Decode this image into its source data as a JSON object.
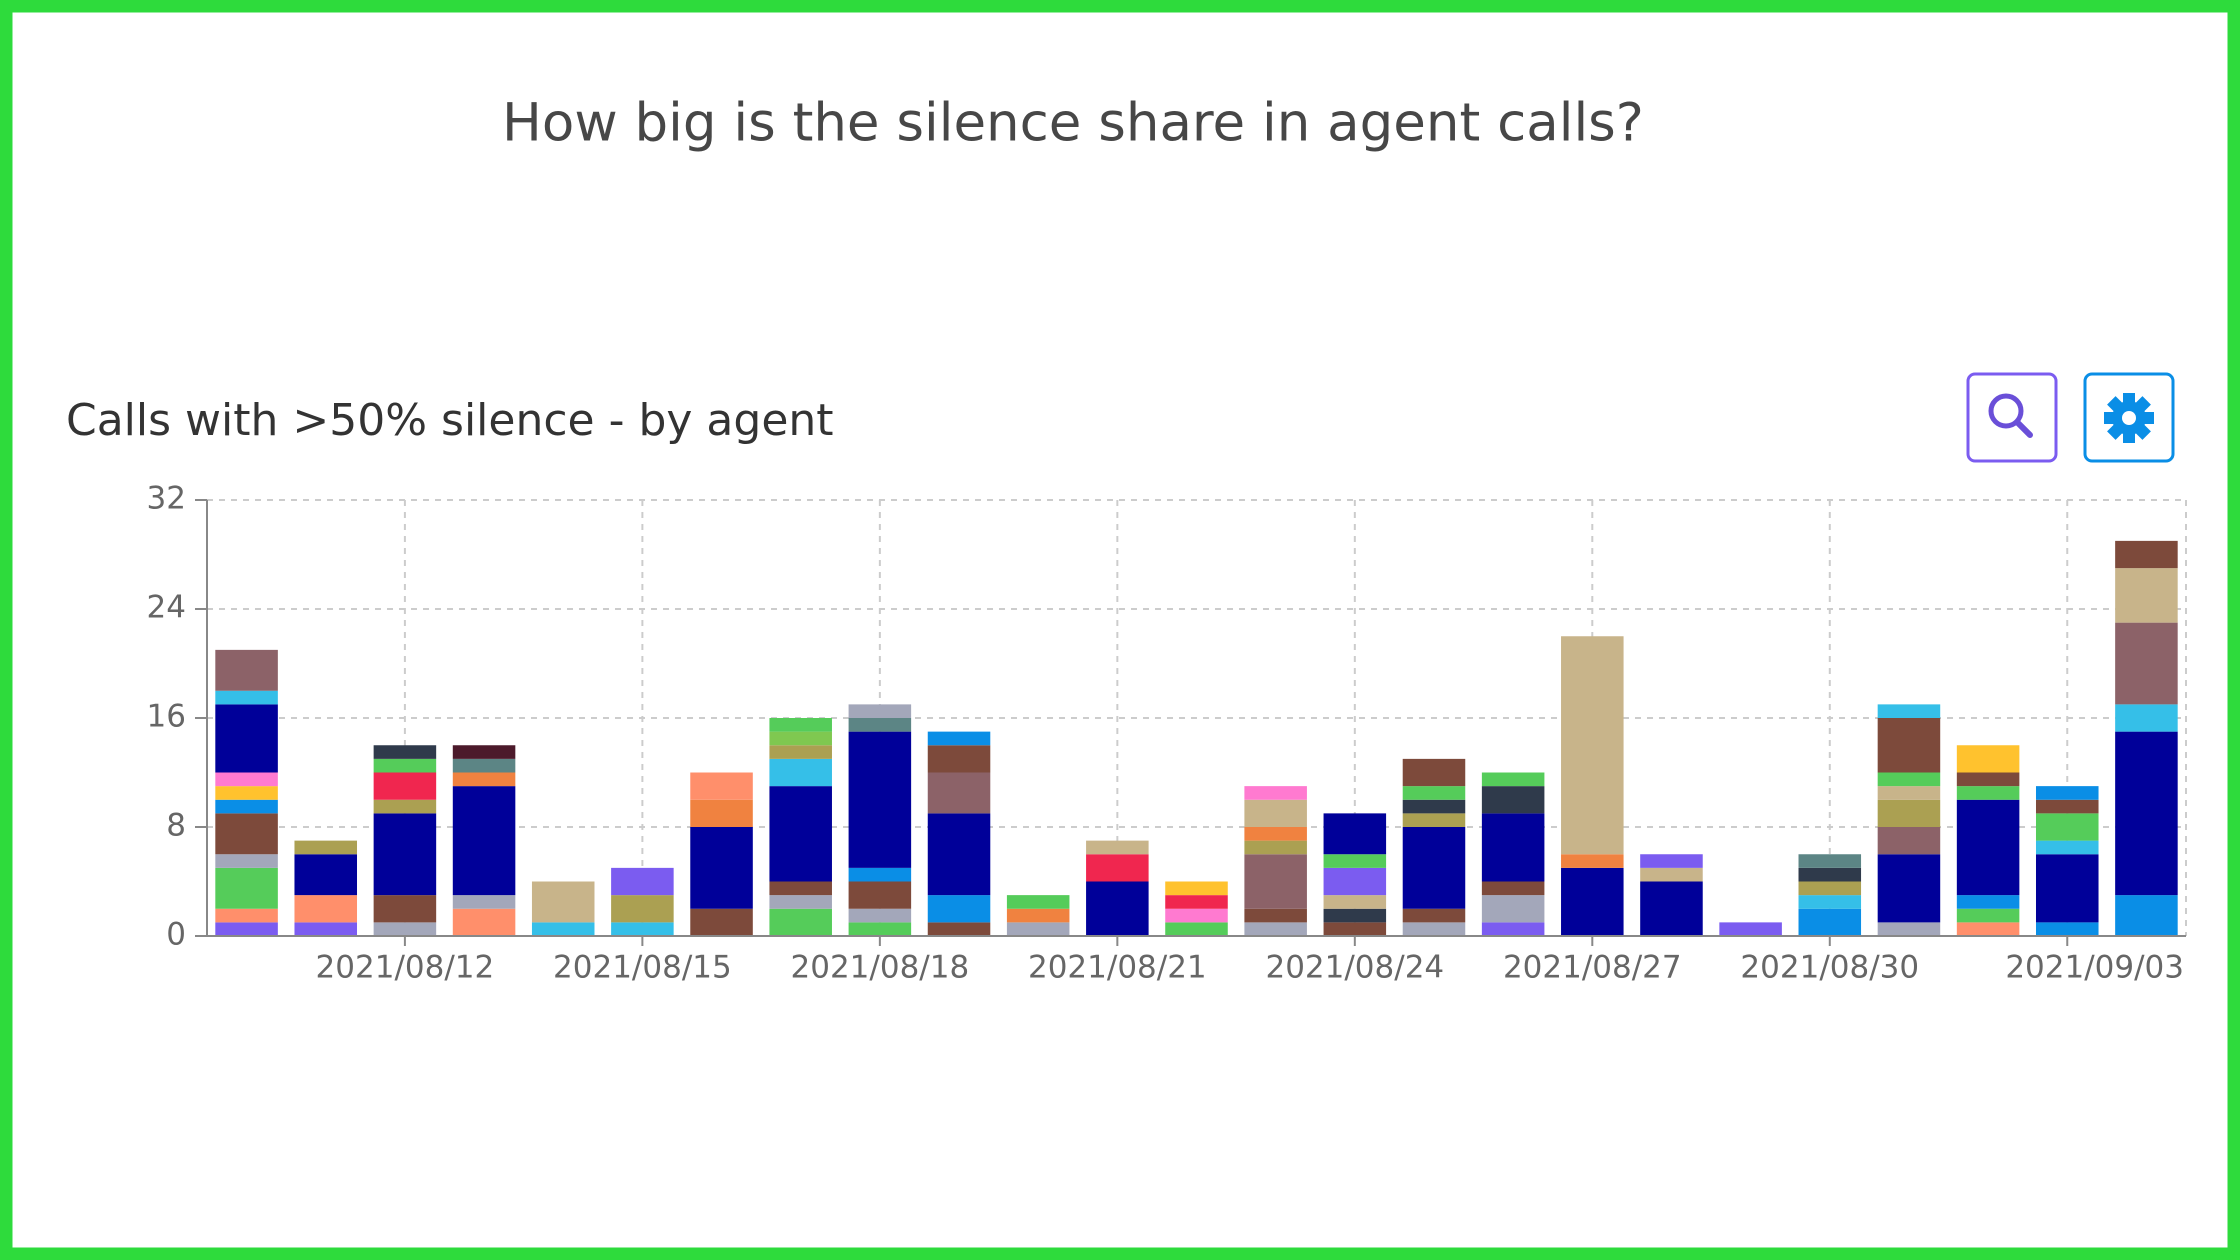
{
  "page_title": "How big is the silence share in agent calls?",
  "chart_data": {
    "type": "stacked-bar",
    "title": "Calls with >50% silence - by agent",
    "categories": [
      null,
      null,
      "2021/08/12",
      null,
      null,
      "2021/08/15",
      null,
      null,
      "2021/08/18",
      null,
      null,
      "2021/08/21",
      null,
      null,
      "2021/08/24",
      null,
      null,
      "2021/08/27",
      null,
      null,
      "2021/08/30",
      null,
      null,
      "2021/09/03",
      null
    ],
    "ylim": [
      0,
      32
    ],
    "yticks": [
      0,
      8,
      16,
      24,
      32
    ],
    "grid": true,
    "bars": [
      [
        {
          "color": "#7b5cf0",
          "value": 1
        },
        {
          "color": "#ff8f6b",
          "value": 1
        },
        {
          "color": "#55cc5a",
          "value": 3
        },
        {
          "color": "#a3a7ba",
          "value": 1
        },
        {
          "color": "#7d4a3b",
          "value": 3
        },
        {
          "color": "#0a8ee6",
          "value": 1
        },
        {
          "color": "#ffc22e",
          "value": 1
        },
        {
          "color": "#ff7ad0",
          "value": 1
        },
        {
          "color": "#000099",
          "value": 5
        },
        {
          "color": "#35bfe8",
          "value": 1
        },
        {
          "color": "#8c6268",
          "value": 3
        }
      ],
      [
        {
          "color": "#7b5cf0",
          "value": 1
        },
        {
          "color": "#ff8f6b",
          "value": 2
        },
        {
          "color": "#000099",
          "value": 3
        },
        {
          "color": "#aba052",
          "value": 1
        }
      ],
      [
        {
          "color": "#a3a7ba",
          "value": 1
        },
        {
          "color": "#7d4a3b",
          "value": 2
        },
        {
          "color": "#000099",
          "value": 6
        },
        {
          "color": "#aba052",
          "value": 1
        },
        {
          "color": "#f0264f",
          "value": 2
        },
        {
          "color": "#55cc5a",
          "value": 1
        },
        {
          "color": "#2f3a4b",
          "value": 1
        }
      ],
      [
        {
          "color": "#ff8f6b",
          "value": 2
        },
        {
          "color": "#a3a7ba",
          "value": 1
        },
        {
          "color": "#000099",
          "value": 8
        },
        {
          "color": "#f08240",
          "value": 1
        },
        {
          "color": "#5c8585",
          "value": 1
        },
        {
          "color": "#4c1a2b",
          "value": 1
        }
      ],
      [
        {
          "color": "#35bfe8",
          "value": 1
        },
        {
          "color": "#c8b48a",
          "value": 3
        }
      ],
      [
        {
          "color": "#35bfe8",
          "value": 1
        },
        {
          "color": "#aba052",
          "value": 2
        },
        {
          "color": "#7b5cf0",
          "value": 2
        }
      ],
      [
        {
          "color": "#7d4a3b",
          "value": 2
        },
        {
          "color": "#000099",
          "value": 6
        },
        {
          "color": "#f08240",
          "value": 2
        },
        {
          "color": "#ff8f6b",
          "value": 2
        }
      ],
      [
        {
          "color": "#55cc5a",
          "value": 2
        },
        {
          "color": "#a3a7ba",
          "value": 1
        },
        {
          "color": "#7d4a3b",
          "value": 1
        },
        {
          "color": "#000099",
          "value": 7
        },
        {
          "color": "#35bfe8",
          "value": 2
        },
        {
          "color": "#aba052",
          "value": 1
        },
        {
          "color": "#7fc850",
          "value": 1
        },
        {
          "color": "#55cc5a",
          "value": 1
        }
      ],
      [
        {
          "color": "#55cc5a",
          "value": 1
        },
        {
          "color": "#a3a7ba",
          "value": 1
        },
        {
          "color": "#7d4a3b",
          "value": 2
        },
        {
          "color": "#0a8ee6",
          "value": 1
        },
        {
          "color": "#000099",
          "value": 10
        },
        {
          "color": "#5c8585",
          "value": 1
        },
        {
          "color": "#a3a7ba",
          "value": 1
        }
      ],
      [
        {
          "color": "#7d4a3b",
          "value": 1
        },
        {
          "color": "#0a8ee6",
          "value": 2
        },
        {
          "color": "#000099",
          "value": 6
        },
        {
          "color": "#8c6268",
          "value": 3
        },
        {
          "color": "#7d4a3b",
          "value": 2
        },
        {
          "color": "#0a8ee6",
          "value": 1
        }
      ],
      [
        {
          "color": "#a3a7ba",
          "value": 1
        },
        {
          "color": "#f08240",
          "value": 1
        },
        {
          "color": "#55cc5a",
          "value": 1
        }
      ],
      [
        {
          "color": "#000099",
          "value": 4
        },
        {
          "color": "#f0264f",
          "value": 2
        },
        {
          "color": "#c8b48a",
          "value": 1
        }
      ],
      [
        {
          "color": "#55cc5a",
          "value": 1
        },
        {
          "color": "#ff7ad0",
          "value": 1
        },
        {
          "color": "#f0264f",
          "value": 1
        },
        {
          "color": "#ffc22e",
          "value": 1
        }
      ],
      [
        {
          "color": "#a3a7ba",
          "value": 1
        },
        {
          "color": "#7d4a3b",
          "value": 1
        },
        {
          "color": "#8c6268",
          "value": 4
        },
        {
          "color": "#aba052",
          "value": 1
        },
        {
          "color": "#f08240",
          "value": 1
        },
        {
          "color": "#c8b48a",
          "value": 2
        },
        {
          "color": "#ff7ad0",
          "value": 1
        }
      ],
      [
        {
          "color": "#7d4a3b",
          "value": 1
        },
        {
          "color": "#2f3a4b",
          "value": 1
        },
        {
          "color": "#c8b48a",
          "value": 1
        },
        {
          "color": "#7b5cf0",
          "value": 2
        },
        {
          "color": "#55cc5a",
          "value": 1
        },
        {
          "color": "#000099",
          "value": 3
        }
      ],
      [
        {
          "color": "#a3a7ba",
          "value": 1
        },
        {
          "color": "#7d4a3b",
          "value": 1
        },
        {
          "color": "#000099",
          "value": 6
        },
        {
          "color": "#aba052",
          "value": 1
        },
        {
          "color": "#2f3a4b",
          "value": 1
        },
        {
          "color": "#55cc5a",
          "value": 1
        },
        {
          "color": "#7d4a3b",
          "value": 2
        }
      ],
      [
        {
          "color": "#7b5cf0",
          "value": 1
        },
        {
          "color": "#a3a7ba",
          "value": 2
        },
        {
          "color": "#7d4a3b",
          "value": 1
        },
        {
          "color": "#000099",
          "value": 5
        },
        {
          "color": "#2f3a4b",
          "value": 2
        },
        {
          "color": "#55cc5a",
          "value": 1
        }
      ],
      [
        {
          "color": "#000099",
          "value": 5
        },
        {
          "color": "#f08240",
          "value": 1
        },
        {
          "color": "#c8b48a",
          "value": 16
        }
      ],
      [
        {
          "color": "#000099",
          "value": 4
        },
        {
          "color": "#c8b48a",
          "value": 1
        },
        {
          "color": "#7b5cf0",
          "value": 1
        }
      ],
      [
        {
          "color": "#7b5cf0",
          "value": 1
        }
      ],
      [
        {
          "color": "#0a8ee6",
          "value": 2
        },
        {
          "color": "#35bfe8",
          "value": 1
        },
        {
          "color": "#aba052",
          "value": 1
        },
        {
          "color": "#2f3a4b",
          "value": 1
        },
        {
          "color": "#5c8585",
          "value": 1
        }
      ],
      [
        {
          "color": "#a3a7ba",
          "value": 1
        },
        {
          "color": "#000099",
          "value": 5
        },
        {
          "color": "#8c6268",
          "value": 2
        },
        {
          "color": "#aba052",
          "value": 2
        },
        {
          "color": "#c8b48a",
          "value": 1
        },
        {
          "color": "#55cc5a",
          "value": 1
        },
        {
          "color": "#7d4a3b",
          "value": 4
        },
        {
          "color": "#35bfe8",
          "value": 1
        }
      ],
      [
        {
          "color": "#ff8f6b",
          "value": 1
        },
        {
          "color": "#55cc5a",
          "value": 1
        },
        {
          "color": "#0a8ee6",
          "value": 1
        },
        {
          "color": "#000099",
          "value": 7
        },
        {
          "color": "#55cc5a",
          "value": 1
        },
        {
          "color": "#7d4a3b",
          "value": 1
        },
        {
          "color": "#ffc22e",
          "value": 2
        }
      ],
      [
        {
          "color": "#0a8ee6",
          "value": 1
        },
        {
          "color": "#000099",
          "value": 5
        },
        {
          "color": "#35bfe8",
          "value": 1
        },
        {
          "color": "#55cc5a",
          "value": 2
        },
        {
          "color": "#7d4a3b",
          "value": 1
        },
        {
          "color": "#0a8ee6",
          "value": 1
        }
      ],
      [
        {
          "color": "#0a8ee6",
          "value": 3
        },
        {
          "color": "#000099",
          "value": 12
        },
        {
          "color": "#35bfe8",
          "value": 2
        },
        {
          "color": "#8c6268",
          "value": 6
        },
        {
          "color": "#c8b48a",
          "value": 4
        },
        {
          "color": "#7d4a3b",
          "value": 2
        }
      ]
    ]
  }
}
